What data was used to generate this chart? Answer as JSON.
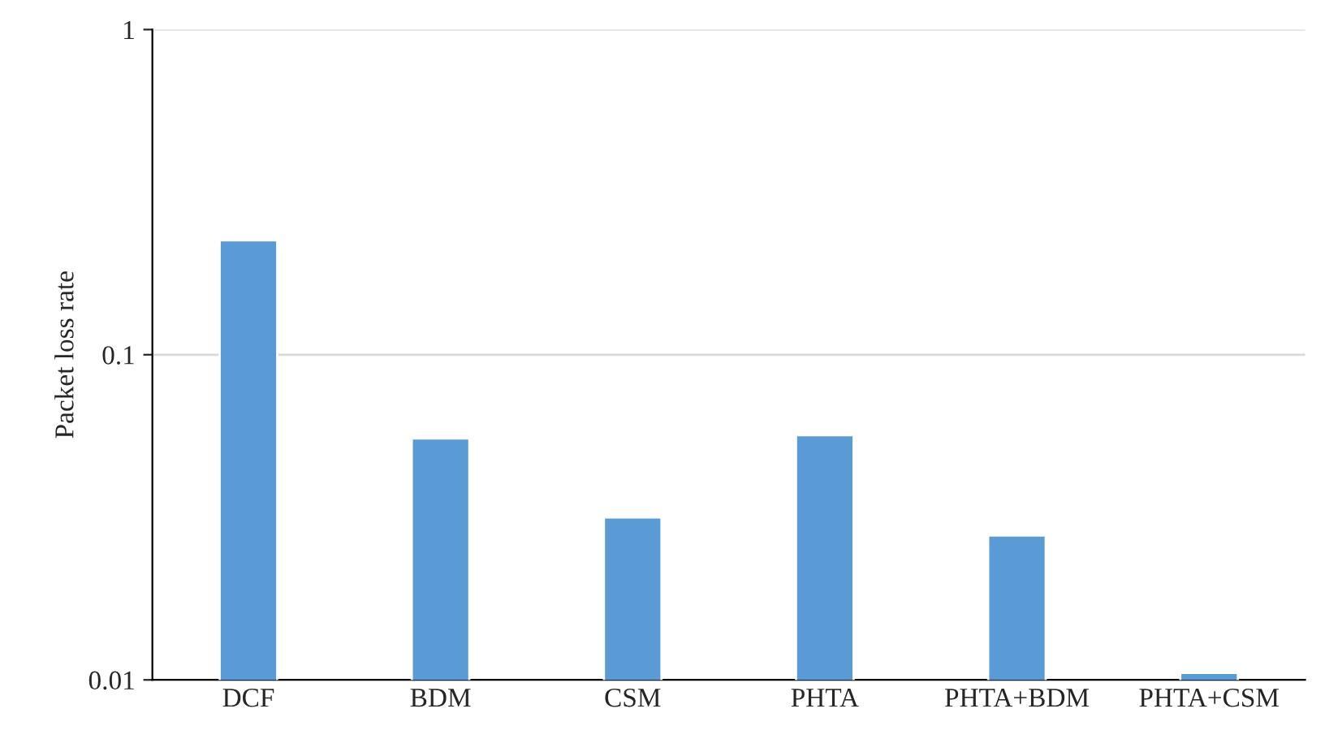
{
  "chart_data": {
    "type": "bar",
    "ylabel": "Packet loss rate",
    "categories": [
      "DCF",
      "BDM",
      "CSM",
      "PHTA",
      "PHTA+BDM",
      "PHTA+CSM"
    ],
    "values": [
      0.225,
      0.0553,
      0.0316,
      0.0566,
      0.0278,
      0.0105
    ],
    "color": "#5b9bd5",
    "log": true,
    "ylim": [
      0.01,
      1
    ],
    "yticks": [
      0.01,
      0.1,
      1
    ],
    "grid": "y"
  }
}
